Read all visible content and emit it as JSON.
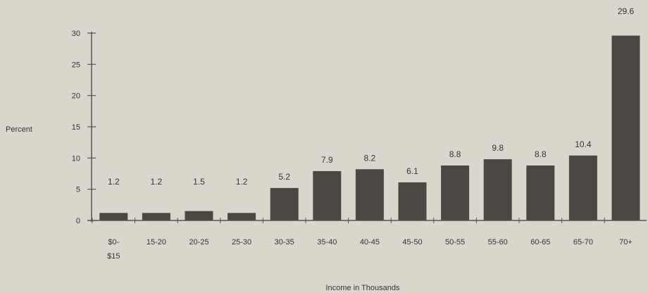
{
  "colors": {
    "background": "#d9d6cc",
    "bar": "#4a4743",
    "axis": "#555555",
    "text": "#333333"
  },
  "chart_data": {
    "type": "bar",
    "title": "",
    "xlabel": "Income in Thousands",
    "ylabel": "Percent",
    "ylim": [
      0,
      30
    ],
    "yticks": [
      0,
      5,
      10,
      15,
      20,
      25,
      30
    ],
    "categories": [
      [
        "$0-",
        "$15"
      ],
      [
        "15-20"
      ],
      [
        "20-25"
      ],
      [
        "25-30"
      ],
      [
        "30-35"
      ],
      [
        "35-40"
      ],
      [
        "40-45"
      ],
      [
        "45-50"
      ],
      [
        "50-55"
      ],
      [
        "55-60"
      ],
      [
        "60-65"
      ],
      [
        "65-70"
      ],
      [
        "70+"
      ]
    ],
    "values": [
      1.2,
      1.2,
      1.5,
      1.2,
      5.2,
      7.9,
      8.2,
      6.1,
      8.8,
      9.8,
      8.8,
      10.4,
      29.6
    ],
    "value_labels": [
      "1.2",
      "1.2",
      "1.5",
      "1.2",
      "5.2",
      "7.9",
      "8.2",
      "6.1",
      "8.8",
      "9.8",
      "8.8",
      "10.4",
      "29.6"
    ],
    "grid": false,
    "legend": "none"
  }
}
